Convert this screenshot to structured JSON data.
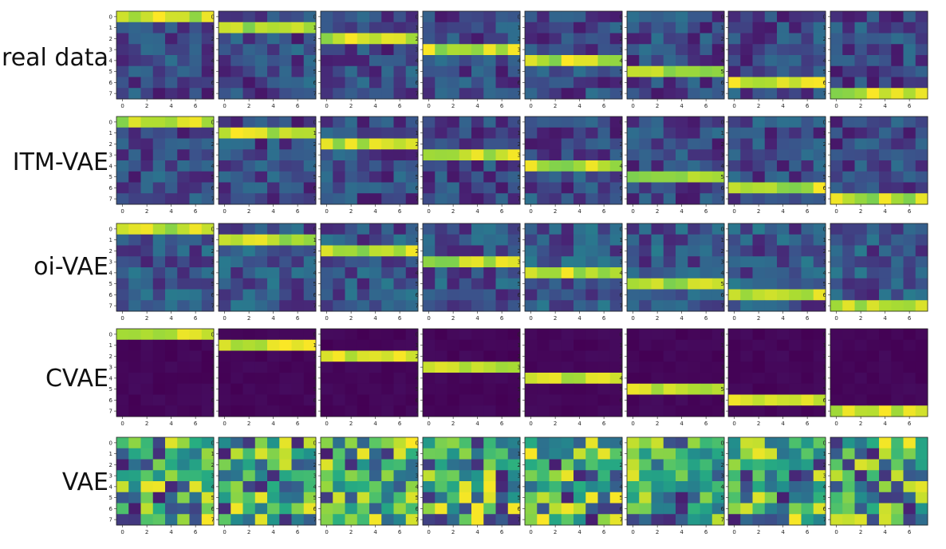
{
  "figure": {
    "row_labels": [
      "real data",
      "ITM-VAE",
      "oi-VAE",
      "CVAE",
      "VAE"
    ]
  },
  "chart_data": {
    "type": "heatmap",
    "rows": [
      "real data",
      "ITM-VAE",
      "oi-VAE",
      "CVAE",
      "VAE"
    ],
    "panels_per_row": 8,
    "grid_size": [
      8,
      8
    ],
    "x_ticks": [
      0,
      2,
      4,
      6
    ],
    "y_ticks": [
      0,
      1,
      2,
      3,
      4,
      5,
      6,
      7
    ],
    "colormap": "viridis",
    "value_range": [
      0,
      1
    ],
    "colors": {
      "low": "#440154",
      "mid": "#21918c",
      "high": "#fde725"
    },
    "description_values": "Each panel k (0-7) of rows real data, ITM-VAE, oi-VAE and CVAE shows a bright horizontal band at row k; CVAE background is near zero; VAE panels show noisy patterns.",
    "bands": {
      "real data": [
        0,
        1,
        2,
        3,
        4,
        5,
        6,
        7
      ],
      "ITM-VAE": [
        0,
        1,
        2,
        3,
        4,
        5,
        6,
        7
      ],
      "oi-VAE": [
        0,
        1,
        2,
        3,
        4,
        5,
        6,
        7
      ],
      "CVAE": [
        0,
        1,
        2,
        3,
        4,
        5,
        6,
        7
      ]
    }
  }
}
